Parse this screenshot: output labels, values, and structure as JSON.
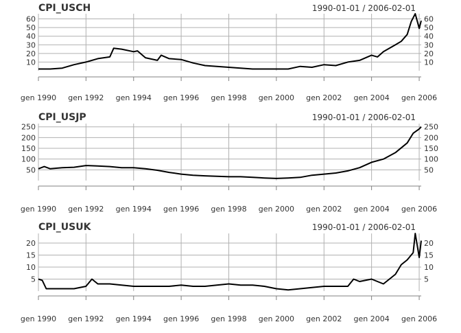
{
  "chart_data": {
    "type": "line",
    "x_ticks": [
      "gen 1990",
      "gen 1992",
      "gen 1994",
      "gen 1996",
      "gen 1998",
      "gen 2000",
      "gen 2002",
      "gen 2004",
      "gen 2006"
    ],
    "x_tick_dates": [
      "1990-01-01",
      "1992-01-01",
      "1994-01-01",
      "1996-01-01",
      "1998-01-01",
      "2000-01-01",
      "2002-01-01",
      "2004-01-01",
      "2006-01-01"
    ],
    "x_range": [
      "1990-01-01",
      "2006-02-01"
    ],
    "grid": true,
    "colors": {
      "line": "#000000",
      "grid": "#b0b0b0",
      "axis": "#808080",
      "text": "#333333"
    },
    "panels": [
      {
        "title": "CPI_USCH",
        "date_range": "1990-01-01 / 2006-02-01",
        "y_ticks": [
          10,
          20,
          30,
          40,
          50,
          60
        ],
        "ylim": [
          0,
          66
        ],
        "series": {
          "x": [
            "1990-01-01",
            "1990-07-01",
            "1991-01-01",
            "1991-07-01",
            "1992-01-01",
            "1992-07-01",
            "1993-01-01",
            "1993-03-01",
            "1993-07-01",
            "1994-01-01",
            "1994-03-01",
            "1994-07-01",
            "1995-01-01",
            "1995-03-01",
            "1995-07-01",
            "1996-01-01",
            "1996-07-01",
            "1997-01-01",
            "1997-07-01",
            "1998-01-01",
            "1998-07-01",
            "1999-01-01",
            "1999-07-01",
            "2000-01-01",
            "2000-07-01",
            "2001-01-01",
            "2001-07-01",
            "2002-01-01",
            "2002-07-01",
            "2003-01-01",
            "2003-07-01",
            "2004-01-01",
            "2004-04-01",
            "2004-07-01",
            "2005-01-01",
            "2005-04-01",
            "2005-07-01",
            "2005-09-01",
            "2005-11-01",
            "2006-01-01",
            "2006-02-01"
          ],
          "y": [
            2,
            2,
            3,
            7,
            10,
            14,
            16,
            26,
            25,
            22,
            23,
            15,
            12,
            18,
            14,
            13,
            9,
            6,
            5,
            4,
            3,
            2,
            2,
            2,
            2,
            5,
            4,
            7,
            6,
            10,
            12,
            18,
            16,
            22,
            30,
            34,
            42,
            57,
            66,
            49,
            58
          ]
        }
      },
      {
        "title": "CPI_USJP",
        "date_range": "1990-01-01 / 2006-02-01",
        "y_ticks": [
          50,
          100,
          150,
          200,
          250
        ],
        "ylim": [
          0,
          265
        ],
        "series": {
          "x": [
            "1990-01-01",
            "1990-04-01",
            "1990-07-01",
            "1991-01-01",
            "1991-07-01",
            "1992-01-01",
            "1992-07-01",
            "1993-01-01",
            "1993-07-01",
            "1994-01-01",
            "1994-07-01",
            "1995-01-01",
            "1995-07-01",
            "1996-01-01",
            "1996-07-01",
            "1997-01-01",
            "1997-07-01",
            "1998-01-01",
            "1998-07-01",
            "1999-01-01",
            "1999-07-01",
            "2000-01-01",
            "2000-07-01",
            "2001-01-01",
            "2001-07-01",
            "2002-01-01",
            "2002-07-01",
            "2003-01-01",
            "2003-07-01",
            "2004-01-01",
            "2004-07-01",
            "2005-01-01",
            "2005-07-01",
            "2005-10-01",
            "2006-01-01",
            "2006-02-01"
          ],
          "y": [
            55,
            65,
            55,
            60,
            62,
            70,
            68,
            65,
            60,
            60,
            55,
            48,
            38,
            30,
            25,
            22,
            20,
            18,
            18,
            15,
            12,
            10,
            12,
            15,
            25,
            30,
            35,
            45,
            60,
            85,
            100,
            130,
            175,
            220,
            240,
            250
          ]
        }
      },
      {
        "title": "CPI_USUK",
        "date_range": "1990-01-01 / 2006-02-01",
        "y_ticks": [
          5,
          10,
          15,
          20
        ],
        "ylim": [
          0,
          24
        ],
        "series": {
          "x": [
            "1990-01-01",
            "1990-03-01",
            "1990-05-01",
            "1991-01-01",
            "1991-07-01",
            "1992-01-01",
            "1992-04-01",
            "1992-07-01",
            "1993-01-01",
            "1993-07-01",
            "1994-01-01",
            "1994-07-01",
            "1995-01-01",
            "1995-07-01",
            "1996-01-01",
            "1996-07-01",
            "1997-01-01",
            "1997-07-01",
            "1998-01-01",
            "1998-07-01",
            "1999-01-01",
            "1999-07-01",
            "2000-01-01",
            "2000-07-01",
            "2001-01-01",
            "2001-07-01",
            "2002-01-01",
            "2002-07-01",
            "2003-01-01",
            "2003-04-01",
            "2003-07-01",
            "2004-01-01",
            "2004-07-01",
            "2005-01-01",
            "2005-04-01",
            "2005-07-01",
            "2005-10-01",
            "2005-11-01",
            "2006-01-01",
            "2006-02-01"
          ],
          "y": [
            5,
            4.5,
            1,
            1,
            1,
            2,
            5,
            3,
            3,
            2.5,
            2,
            2,
            2,
            2,
            2.5,
            2,
            2,
            2.5,
            3,
            2.5,
            2.5,
            2,
            1,
            0.5,
            1,
            1.5,
            2,
            2,
            2,
            5,
            4,
            5,
            3,
            7,
            11,
            13,
            16,
            24,
            14,
            21
          ]
        }
      }
    ]
  }
}
